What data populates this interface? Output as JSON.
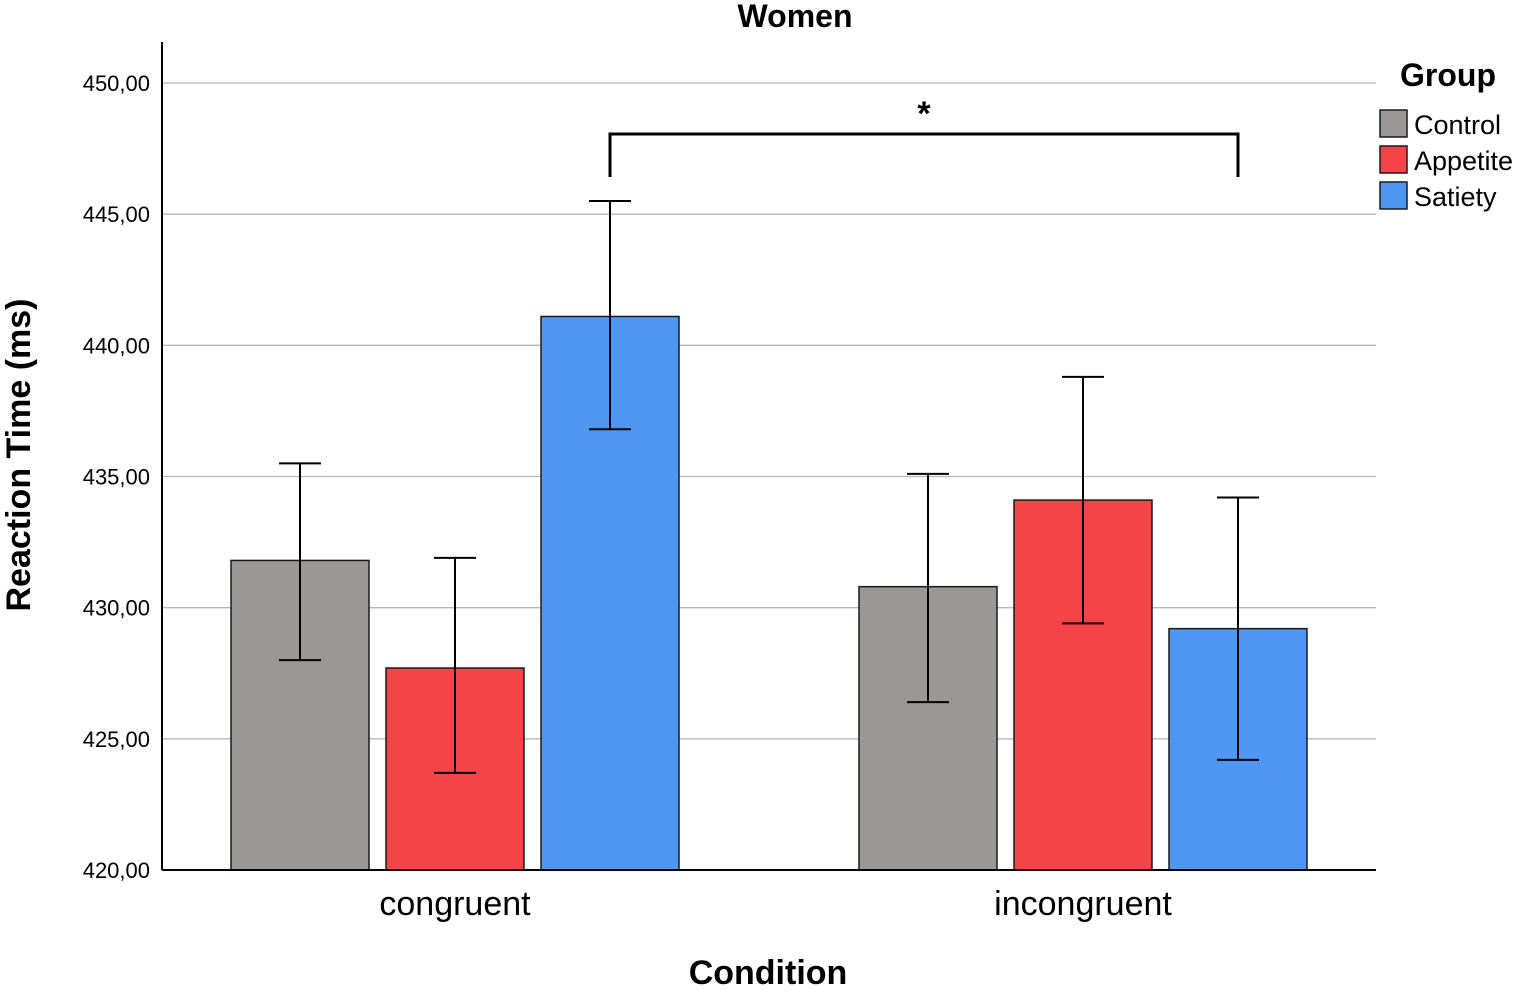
{
  "chart_data": {
    "type": "bar",
    "title": "Women",
    "xlabel": "Condition",
    "ylabel": "Reaction Time (ms)",
    "categories": [
      "congruent",
      "incongruent"
    ],
    "ylim": [
      420,
      450
    ],
    "yticks": [
      420,
      425,
      430,
      435,
      440,
      445,
      450
    ],
    "ytick_labels": [
      "420,00",
      "425,00",
      "430,00",
      "435,00",
      "440,00",
      "445,00",
      "450,00"
    ],
    "grid": true,
    "legend": {
      "title": "Group",
      "position": "top-right"
    },
    "series": [
      {
        "name": "Control",
        "color": "#9b9796",
        "values": [
          431.8,
          430.8
        ],
        "err_low": [
          428.0,
          426.4
        ],
        "err_high": [
          435.5,
          435.1
        ]
      },
      {
        "name": "Appetite",
        "color": "#f44447",
        "values": [
          427.7,
          434.1
        ],
        "err_low": [
          423.7,
          429.4
        ],
        "err_high": [
          431.9,
          438.8
        ]
      },
      {
        "name": "Satiety",
        "color": "#4e97f2",
        "values": [
          441.1,
          429.2
        ],
        "err_low": [
          436.8,
          424.2
        ],
        "err_high": [
          445.5,
          434.2
        ]
      }
    ],
    "annotations": [
      {
        "text": "*",
        "type": "significance-bracket",
        "from": {
          "category": "congruent",
          "series": "Satiety"
        },
        "to": {
          "category": "incongruent",
          "series": "Satiety"
        }
      }
    ]
  }
}
